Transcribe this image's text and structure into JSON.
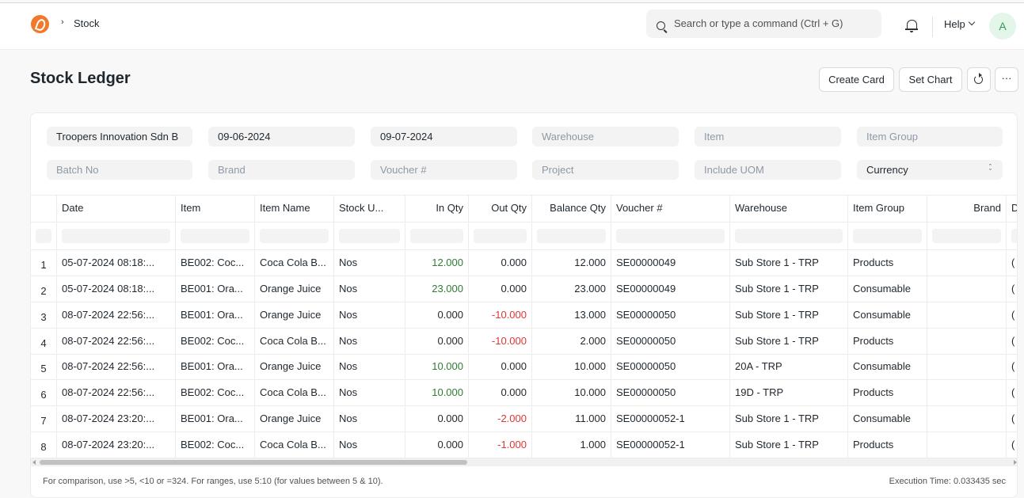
{
  "navbar": {
    "breadcrumb": "Stock",
    "search_placeholder": "Search or type a command (Ctrl + G)",
    "help_label": "Help",
    "avatar_initial": "A"
  },
  "page": {
    "title": "Stock Ledger",
    "buttons": {
      "create_card": "Create Card",
      "set_chart": "Set Chart",
      "more": "···"
    }
  },
  "filters": {
    "company": "Troopers Innovation Sdn B",
    "from_date": "09-06-2024",
    "to_date": "09-07-2024",
    "warehouse": "Warehouse",
    "item": "Item",
    "item_group": "Item Group",
    "batch_no": "Batch No",
    "brand": "Brand",
    "voucher_no": "Voucher #",
    "project": "Project",
    "include_uom": "Include UOM",
    "currency": "Currency"
  },
  "table": {
    "columns": [
      "Date",
      "Item",
      "Item Name",
      "Stock U...",
      "In Qty",
      "Out Qty",
      "Balance Qty",
      "Voucher #",
      "Warehouse",
      "Item Group",
      "Brand",
      "D"
    ],
    "rows": [
      {
        "n": "1",
        "date": "05-07-2024 08:18:...",
        "item": "BE002: Coc...",
        "item_name": "Coca Cola B...",
        "uom": "Nos",
        "in_qty": "12.000",
        "out_qty": "0.000",
        "balance": "12.000",
        "voucher": "SE00000049",
        "warehouse": "Sub Store 1 - TRP",
        "group": "Products",
        "brand": "",
        "d": "("
      },
      {
        "n": "2",
        "date": "05-07-2024 08:18:...",
        "item": "BE001: Ora...",
        "item_name": "Orange Juice",
        "uom": "Nos",
        "in_qty": "23.000",
        "out_qty": "0.000",
        "balance": "23.000",
        "voucher": "SE00000049",
        "warehouse": "Sub Store 1 - TRP",
        "group": "Consumable",
        "brand": "",
        "d": "("
      },
      {
        "n": "3",
        "date": "08-07-2024 22:56:...",
        "item": "BE001: Ora...",
        "item_name": "Orange Juice",
        "uom": "Nos",
        "in_qty": "0.000",
        "out_qty": "-10.000",
        "balance": "13.000",
        "voucher": "SE00000050",
        "warehouse": "Sub Store 1 - TRP",
        "group": "Consumable",
        "brand": "",
        "d": "("
      },
      {
        "n": "4",
        "date": "08-07-2024 22:56:...",
        "item": "BE002: Coc...",
        "item_name": "Coca Cola B...",
        "uom": "Nos",
        "in_qty": "0.000",
        "out_qty": "-10.000",
        "balance": "2.000",
        "voucher": "SE00000050",
        "warehouse": "Sub Store 1 - TRP",
        "group": "Products",
        "brand": "",
        "d": "("
      },
      {
        "n": "5",
        "date": "08-07-2024 22:56:...",
        "item": "BE001: Ora...",
        "item_name": "Orange Juice",
        "uom": "Nos",
        "in_qty": "10.000",
        "out_qty": "0.000",
        "balance": "10.000",
        "voucher": "SE00000050",
        "warehouse": "20A - TRP",
        "group": "Consumable",
        "brand": "",
        "d": "("
      },
      {
        "n": "6",
        "date": "08-07-2024 22:56:...",
        "item": "BE002: Coc...",
        "item_name": "Coca Cola B...",
        "uom": "Nos",
        "in_qty": "10.000",
        "out_qty": "0.000",
        "balance": "10.000",
        "voucher": "SE00000050",
        "warehouse": "19D - TRP",
        "group": "Products",
        "brand": "",
        "d": "("
      },
      {
        "n": "7",
        "date": "08-07-2024 23:20:...",
        "item": "BE001: Ora...",
        "item_name": "Orange Juice",
        "uom": "Nos",
        "in_qty": "0.000",
        "out_qty": "-2.000",
        "balance": "11.000",
        "voucher": "SE00000052-1",
        "warehouse": "Sub Store 1 - TRP",
        "group": "Consumable",
        "brand": "",
        "d": "("
      },
      {
        "n": "8",
        "date": "08-07-2024 23:20:...",
        "item": "BE002: Coc...",
        "item_name": "Coca Cola B...",
        "uom": "Nos",
        "in_qty": "0.000",
        "out_qty": "-1.000",
        "balance": "1.000",
        "voucher": "SE00000052-1",
        "warehouse": "Sub Store 1 - TRP",
        "group": "Products",
        "brand": "",
        "d": "("
      }
    ]
  },
  "footer": {
    "note": "For comparison, use >5, <10 or =324. For ranges, use 5:10 (for values between 5 & 10).",
    "execution_time": "Execution Time: 0.033435 sec"
  },
  "colors": {
    "positive": "#2f7d32",
    "negative": "#e03636",
    "logo": "#f0792b",
    "avatar_bg": "#e4f5e9"
  }
}
